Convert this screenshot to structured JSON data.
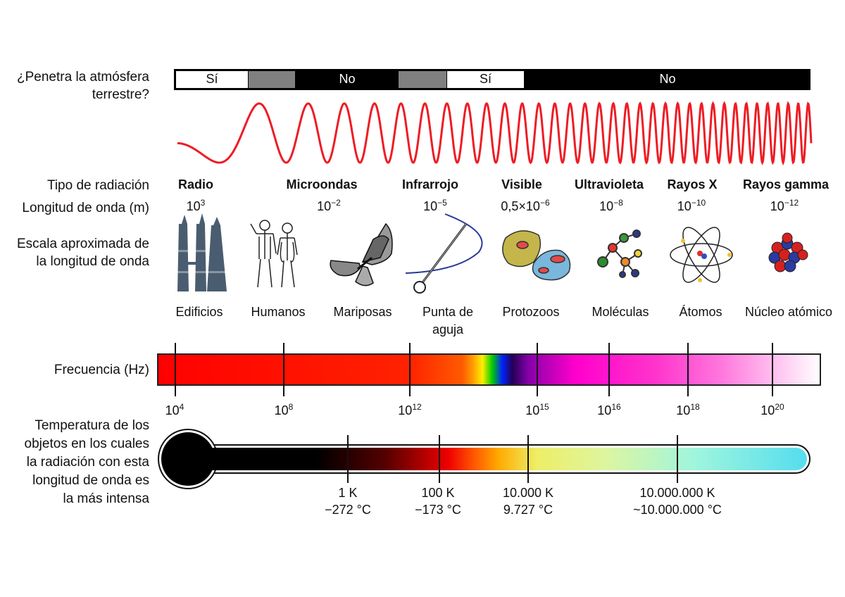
{
  "labels": {
    "atmosphere_line1": "¿Penetra la atmósfera",
    "atmosphere_line2": "terrestre?",
    "radiation_type": "Tipo de radiación",
    "wavelength": "Longitud de onda (m)",
    "scale_line1": "Escala aproximada de",
    "scale_line2": "la longitud de onda",
    "frequency": "Frecuencia (Hz)",
    "temp_line1": "Temperatura de los",
    "temp_line2": "objetos en los cuales",
    "temp_line3": "la radiación con esta",
    "temp_line4": "longitud de onda es",
    "temp_line5": "la más intensa"
  },
  "atmosphere": {
    "yes1": "Sí",
    "no1": "No",
    "yes2": "Sí",
    "no2": "No"
  },
  "radiation": [
    {
      "name": "Radio",
      "wl_base": "10",
      "wl_exp": "3",
      "object": "Edificios",
      "object2": ""
    },
    {
      "name": "Microondas",
      "wl_base": "10",
      "wl_exp": "−2",
      "object": "Humanos",
      "object2": ""
    },
    {
      "name": "Infrarrojo",
      "wl_base": "10",
      "wl_exp": "−5",
      "object": "Mariposas",
      "object2": ""
    },
    {
      "name": "",
      "wl_base": "",
      "wl_exp": "",
      "object": "Punta de",
      "object2": "aguja"
    },
    {
      "name": "Visible",
      "wl_base": "0,5×10",
      "wl_exp": "−6",
      "object": "Protozoos",
      "object2": ""
    },
    {
      "name": "Ultravioleta",
      "wl_base": "10",
      "wl_exp": "−8",
      "object": "Moléculas",
      "object2": ""
    },
    {
      "name": "Rayos X",
      "wl_base": "10",
      "wl_exp": "−10",
      "object": "Átomos",
      "object2": ""
    },
    {
      "name": "Rayos gamma",
      "wl_base": "10",
      "wl_exp": "−12",
      "object": "Núcleo atómico",
      "object2": ""
    }
  ],
  "frequency_ticks": [
    {
      "base": "10",
      "exp": "4"
    },
    {
      "base": "10",
      "exp": "8"
    },
    {
      "base": "10",
      "exp": "12"
    },
    {
      "base": "10",
      "exp": "15"
    },
    {
      "base": "10",
      "exp": "16"
    },
    {
      "base": "10",
      "exp": "18"
    },
    {
      "base": "10",
      "exp": "20"
    }
  ],
  "temperatures": [
    {
      "k": "1 K",
      "c": "−272 °C"
    },
    {
      "k": "100 K",
      "c": "−173 °C"
    },
    {
      "k": "10.000 K",
      "c": "9.727 °C"
    },
    {
      "k": "10.000.000 K",
      "c": "~10.000.000 °C"
    }
  ],
  "colors": {
    "wave": "#ee1c24",
    "bar_dark": "#000000",
    "bar_grey": "#808080",
    "building": "#4a5d70"
  }
}
